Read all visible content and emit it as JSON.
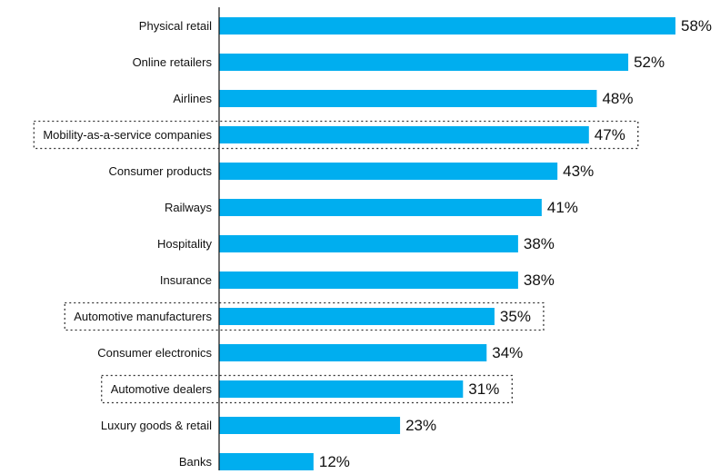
{
  "chart_data": {
    "type": "bar",
    "orientation": "horizontal",
    "categories": [
      "Physical retail",
      "Online retailers",
      "Airlines",
      "Mobility-as-a-service companies",
      "Consumer products",
      "Railways",
      "Hospitality",
      "Insurance",
      "Automotive manufacturers",
      "Consumer electronics",
      "Automotive dealers",
      "Luxury goods & retail",
      "Banks"
    ],
    "values": [
      58,
      52,
      48,
      47,
      43,
      41,
      38,
      38,
      35,
      34,
      31,
      23,
      12
    ],
    "value_labels": [
      "58%",
      "52%",
      "48%",
      "47%",
      "43%",
      "41%",
      "38%",
      "38%",
      "35%",
      "34%",
      "31%",
      "23%",
      "12%"
    ],
    "highlighted": [
      "Mobility-as-a-service companies",
      "Automotive manufacturers",
      "Automotive dealers"
    ],
    "highlight_style": "dotted box",
    "bar_color": "#00aeef",
    "title": "",
    "xlabel": "",
    "ylabel": "",
    "xlim": [
      0,
      58
    ],
    "grid": false,
    "legend": "none"
  }
}
